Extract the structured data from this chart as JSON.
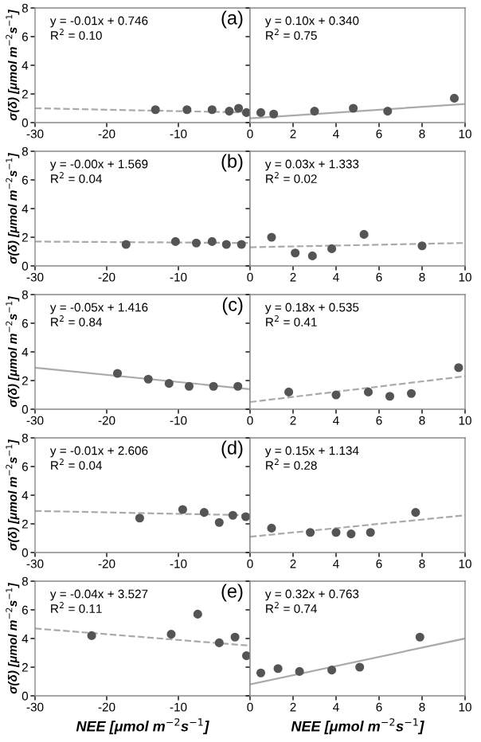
{
  "chart_data": [
    {
      "type": "scatter",
      "ylabel": "σ(δ) [μmol m$^{−2}$s$^{−1}$]",
      "annotations": [
        "y = -0.01x + 0.746",
        "R$^{2}$ = 0.10",
        "(a)"
      ],
      "xlim": [
        -30,
        0
      ],
      "xticks": [
        -30,
        -20,
        -10,
        0
      ],
      "ylim": [
        0,
        8
      ],
      "yticks": [
        0,
        2,
        4,
        6,
        8
      ],
      "series": [
        {
          "marker": "circle",
          "color": "#555555",
          "x": [
            -13.2,
            -8.8,
            -5.3,
            -2.9,
            -1.6,
            -0.5
          ],
          "values": [
            0.9,
            0.9,
            0.9,
            0.8,
            1.0,
            0.7
          ]
        },
        {
          "type": "line",
          "marker": "none",
          "color": "#aaaaaa",
          "line_style": "dashed",
          "x": [
            -30,
            0
          ],
          "values": [
            1.0,
            0.7
          ]
        }
      ]
    },
    {
      "type": "scatter",
      "annotations": [
        "y = 0.10x + 0.340",
        "R$^{2}$ = 0.75"
      ],
      "xlim": [
        0,
        10
      ],
      "xticks": [
        2,
        4,
        6,
        8,
        10
      ],
      "ylim": [
        0,
        8
      ],
      "yticks": [
        0,
        2,
        4,
        6,
        8
      ],
      "tick_labels": "x",
      "series": [
        {
          "marker": "circle",
          "color": "#555555",
          "x": [
            0.5,
            1.1,
            3.0,
            4.8,
            6.4,
            9.5
          ],
          "values": [
            0.7,
            0.6,
            0.8,
            1.0,
            0.8,
            1.7
          ]
        },
        {
          "type": "line",
          "marker": "none",
          "color": "#aaaaaa",
          "line_style": "solid",
          "x": [
            0,
            10
          ],
          "values": [
            0.3,
            1.3
          ]
        }
      ]
    },
    {
      "type": "scatter",
      "ylabel": "σ(δ) [μmol m$^{−2}$s$^{−1}$]",
      "annotations": [
        "y = -0.00x + 1.569",
        "R$^{2}$ = 0.04",
        "(b)"
      ],
      "xlim": [
        -30,
        0
      ],
      "xticks": [
        -30,
        -20,
        -10,
        0
      ],
      "ylim": [
        0,
        8
      ],
      "yticks": [
        0,
        2,
        4,
        6,
        8
      ],
      "series": [
        {
          "marker": "circle",
          "color": "#555555",
          "x": [
            -17.3,
            -10.4,
            -7.5,
            -5.3,
            -3.3,
            -1.2
          ],
          "values": [
            1.5,
            1.7,
            1.6,
            1.7,
            1.5,
            1.5
          ]
        },
        {
          "type": "line",
          "marker": "none",
          "color": "#aaaaaa",
          "line_style": "dashed",
          "x": [
            -30,
            0
          ],
          "values": [
            1.7,
            1.6
          ]
        }
      ]
    },
    {
      "type": "scatter",
      "annotations": [
        "y = 0.03x + 1.333",
        "R$^{2}$ = 0.02"
      ],
      "xlim": [
        0,
        10
      ],
      "xticks": [
        2,
        4,
        6,
        8,
        10
      ],
      "ylim": [
        0,
        8
      ],
      "yticks": [
        0,
        2,
        4,
        6,
        8
      ],
      "tick_labels": "x",
      "series": [
        {
          "marker": "circle",
          "color": "#555555",
          "x": [
            1.0,
            2.1,
            2.9,
            3.8,
            5.3,
            8.0
          ],
          "values": [
            2.0,
            0.9,
            0.7,
            1.2,
            2.2,
            1.4
          ]
        },
        {
          "type": "line",
          "marker": "none",
          "color": "#aaaaaa",
          "line_style": "dashed",
          "x": [
            0,
            10
          ],
          "values": [
            1.3,
            1.6
          ]
        }
      ]
    },
    {
      "type": "scatter",
      "ylabel": "σ(δ) [μmol m$^{−2}$s$^{−1}$]",
      "annotations": [
        "y = -0.05x + 1.416",
        "R$^{2}$ = 0.84",
        "(c)"
      ],
      "xlim": [
        -30,
        0
      ],
      "xticks": [
        -30,
        -20,
        -10,
        0
      ],
      "ylim": [
        0,
        8
      ],
      "yticks": [
        0,
        2,
        4,
        6,
        8
      ],
      "series": [
        {
          "marker": "circle",
          "color": "#555555",
          "x": [
            -18.5,
            -14.2,
            -11.3,
            -8.5,
            -5.1,
            -1.7
          ],
          "values": [
            2.5,
            2.1,
            1.8,
            1.6,
            1.6,
            1.6
          ]
        },
        {
          "type": "line",
          "marker": "none",
          "color": "#aaaaaa",
          "line_style": "solid",
          "x": [
            -30,
            0
          ],
          "values": [
            2.9,
            1.4
          ]
        }
      ]
    },
    {
      "type": "scatter",
      "annotations": [
        "y = 0.18x + 0.535",
        "R$^{2}$ = 0.41"
      ],
      "xlim": [
        0,
        10
      ],
      "xticks": [
        2,
        4,
        6,
        8,
        10
      ],
      "ylim": [
        0,
        8
      ],
      "yticks": [
        0,
        2,
        4,
        6,
        8
      ],
      "tick_labels": "x",
      "series": [
        {
          "marker": "circle",
          "color": "#555555",
          "x": [
            1.8,
            4.0,
            5.5,
            6.5,
            7.5,
            9.7
          ],
          "values": [
            1.2,
            1.0,
            1.2,
            0.9,
            1.1,
            2.9
          ]
        },
        {
          "type": "line",
          "marker": "none",
          "color": "#aaaaaa",
          "line_style": "dashed",
          "x": [
            0,
            10
          ],
          "values": [
            0.5,
            2.3
          ]
        }
      ]
    },
    {
      "type": "scatter",
      "ylabel": "σ(δ) [μmol m$^{−2}$s$^{−1}$]",
      "annotations": [
        "y = -0.01x + 2.606",
        "R$^{2}$ = 0.04",
        "(d)"
      ],
      "xlim": [
        -30,
        0
      ],
      "xticks": [
        -30,
        -20,
        -10,
        0
      ],
      "ylim": [
        0,
        8
      ],
      "yticks": [
        0,
        2,
        4,
        6,
        8
      ],
      "series": [
        {
          "marker": "circle",
          "color": "#555555",
          "x": [
            -15.4,
            -9.4,
            -6.4,
            -4.3,
            -2.4,
            -0.6
          ],
          "values": [
            2.4,
            3.0,
            2.8,
            2.1,
            2.6,
            2.5
          ]
        },
        {
          "type": "line",
          "marker": "none",
          "color": "#aaaaaa",
          "line_style": "dashed",
          "x": [
            -30,
            0
          ],
          "values": [
            2.9,
            2.6
          ]
        }
      ]
    },
    {
      "type": "scatter",
      "annotations": [
        "y = 0.15x + 1.134",
        "R$^{2}$ = 0.28"
      ],
      "xlim": [
        0,
        10
      ],
      "xticks": [
        2,
        4,
        6,
        8,
        10
      ],
      "ylim": [
        0,
        8
      ],
      "yticks": [
        0,
        2,
        4,
        6,
        8
      ],
      "tick_labels": "x",
      "series": [
        {
          "marker": "circle",
          "color": "#555555",
          "x": [
            1.0,
            2.8,
            4.0,
            4.7,
            5.6,
            7.7
          ],
          "values": [
            1.7,
            1.4,
            1.4,
            1.3,
            1.4,
            2.8
          ]
        },
        {
          "type": "line",
          "marker": "none",
          "color": "#aaaaaa",
          "line_style": "dashed",
          "x": [
            0,
            10
          ],
          "values": [
            1.1,
            2.6
          ]
        }
      ]
    },
    {
      "type": "scatter",
      "xlabel": "NEE [μmol m$^{−2}$s$^{−1}$]",
      "ylabel": "σ(δ) [μmol m$^{−2}$s$^{−1}$]",
      "annotations": [
        "y = -0.04x + 3.527",
        "R$^{2}$ = 0.11",
        "(e)"
      ],
      "xlim": [
        -30,
        0
      ],
      "xticks": [
        -30,
        -20,
        -10,
        0
      ],
      "ylim": [
        0,
        8
      ],
      "yticks": [
        0,
        2,
        4,
        6,
        8
      ],
      "series": [
        {
          "marker": "circle",
          "color": "#555555",
          "x": [
            -22.1,
            -11.0,
            -7.3,
            -4.3,
            -2.1,
            -0.5
          ],
          "values": [
            4.2,
            4.3,
            5.7,
            3.7,
            4.1,
            2.8
          ]
        },
        {
          "type": "line",
          "marker": "none",
          "color": "#aaaaaa",
          "line_style": "dashed",
          "x": [
            -30,
            0
          ],
          "values": [
            4.7,
            3.5
          ]
        }
      ]
    },
    {
      "type": "scatter",
      "xlabel": "NEE [μmol m$^{−2}$s$^{−1}$]",
      "annotations": [
        "y = 0.32x + 0.763",
        "R$^{2}$ = 0.74"
      ],
      "xlim": [
        0,
        10
      ],
      "xticks": [
        2,
        4,
        6,
        8,
        10
      ],
      "ylim": [
        0,
        8
      ],
      "yticks": [
        0,
        2,
        4,
        6,
        8
      ],
      "tick_labels": "x",
      "series": [
        {
          "marker": "circle",
          "color": "#555555",
          "x": [
            0.5,
            1.3,
            2.3,
            3.8,
            5.1,
            7.9
          ],
          "values": [
            1.6,
            1.9,
            1.7,
            1.8,
            2.0,
            4.1
          ]
        },
        {
          "type": "line",
          "marker": "none",
          "color": "#aaaaaa",
          "line_style": "solid",
          "x": [
            0,
            10
          ],
          "values": [
            0.8,
            4.0
          ]
        }
      ]
    }
  ]
}
